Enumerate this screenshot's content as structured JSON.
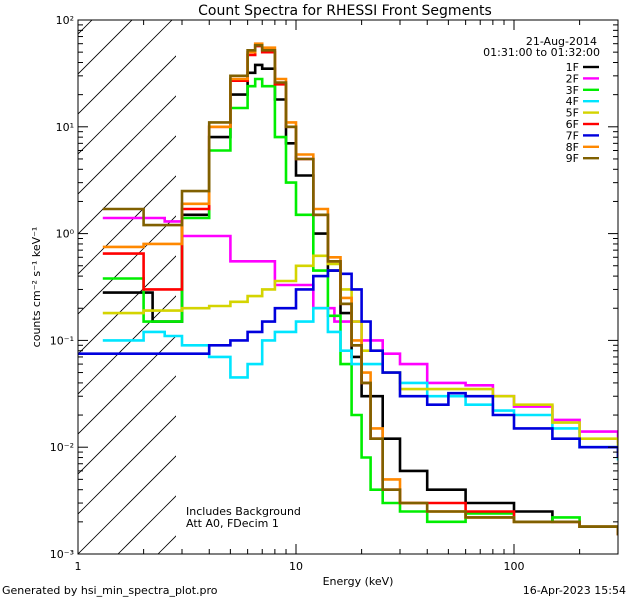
{
  "footer": {
    "left": "Generated by hsi_min_spectra_plot.pro",
    "right": "16-Apr-2023 15:54"
  },
  "chart_data": {
    "type": "line",
    "title": "Count Spectra for RHESSI Front Segments",
    "xlabel": "Energy (keV)",
    "ylabel": "counts cm⁻² s⁻¹ keV⁻¹",
    "xscale": "log",
    "yscale": "log",
    "xlim": [
      1,
      300
    ],
    "ylim": [
      0.001,
      100
    ],
    "x_ticks": [
      {
        "value": 1,
        "label": "1"
      },
      {
        "value": 10,
        "label": "10"
      },
      {
        "value": 100,
        "label": "100"
      }
    ],
    "y_ticks": [
      {
        "value": 0.001,
        "label": "10⁻³"
      },
      {
        "value": 0.01,
        "label": "10⁻²"
      },
      {
        "value": 0.1,
        "label": "10⁻¹"
      },
      {
        "value": 1,
        "label": "10⁰"
      },
      {
        "value": 10,
        "label": "10¹"
      },
      {
        "value": 100,
        "label": "10²"
      }
    ],
    "hatched_region_x": [
      1,
      3
    ],
    "annotations": {
      "date": "21-Aug-2014",
      "time_range": "01:31:00 to 01:32:00",
      "notes": [
        "Includes Background",
        "Att A0, FDecim 1"
      ]
    },
    "legend_position": "top-right",
    "series": [
      {
        "name": "1F",
        "color": "#000000",
        "x": [
          1.3,
          2.2,
          2.6,
          3.0,
          4.0,
          5.0,
          6.0,
          6.5,
          7.0,
          8.0,
          9.0,
          10.0,
          12.0,
          14.0,
          16.0,
          18.0,
          20.0,
          25.0,
          30.0,
          40.0,
          60.0,
          100.0,
          150.0,
          200.0,
          300.0
        ],
        "y": [
          0.28,
          0.15,
          0.15,
          1.5,
          8,
          20,
          32,
          38,
          35,
          18,
          7,
          3.5,
          1.0,
          0.45,
          0.18,
          0.07,
          0.03,
          0.012,
          0.006,
          0.004,
          0.003,
          0.0025,
          0.002,
          0.0018,
          0.0015
        ]
      },
      {
        "name": "2F",
        "color": "#ff00ff",
        "x": [
          1.3,
          2.0,
          2.5,
          3.0,
          5.0,
          8.0,
          12.0,
          15.0,
          20.0,
          25.0,
          30.0,
          40.0,
          60.0,
          80.0,
          100.0,
          150.0,
          200.0,
          300.0
        ],
        "y": [
          1.4,
          1.4,
          1.3,
          0.95,
          0.55,
          0.33,
          0.2,
          0.15,
          0.1,
          0.075,
          0.06,
          0.04,
          0.038,
          0.03,
          0.024,
          0.018,
          0.014,
          0.011
        ]
      },
      {
        "name": "3F",
        "color": "#00ee00",
        "x": [
          1.3,
          2.0,
          2.5,
          3.0,
          4.0,
          5.0,
          6.0,
          6.5,
          7.0,
          8.0,
          9.0,
          10.0,
          12.0,
          14.0,
          16.0,
          18.0,
          20.0,
          22.0,
          25.0,
          30.0,
          40.0,
          60.0,
          100.0,
          150.0,
          200.0,
          300.0
        ],
        "y": [
          0.38,
          0.15,
          0.15,
          1.4,
          6,
          15,
          24,
          28,
          24,
          8,
          3.0,
          1.5,
          0.45,
          0.17,
          0.06,
          0.02,
          0.008,
          0.004,
          0.003,
          0.0025,
          0.002,
          0.0024,
          0.002,
          0.0022,
          0.0018,
          0.0016
        ]
      },
      {
        "name": "4F",
        "color": "#00e5ff",
        "x": [
          1.3,
          2.0,
          2.5,
          3.0,
          4.0,
          5.0,
          6.0,
          7.0,
          8.0,
          10.0,
          12.0,
          14.0,
          16.0,
          18.0,
          20.0,
          25.0,
          30.0,
          40.0,
          60.0,
          80.0,
          100.0,
          150.0,
          200.0,
          300.0
        ],
        "y": [
          0.1,
          0.12,
          0.11,
          0.09,
          0.07,
          0.045,
          0.06,
          0.1,
          0.12,
          0.15,
          0.2,
          0.12,
          0.08,
          0.06,
          0.06,
          0.05,
          0.04,
          0.03,
          0.025,
          0.022,
          0.02,
          0.015,
          0.01,
          0.0075
        ]
      },
      {
        "name": "5F",
        "color": "#d4d400",
        "x": [
          1.3,
          2.0,
          3.0,
          4.0,
          5.0,
          6.0,
          7.0,
          8.0,
          10.0,
          12.0,
          14.0,
          16.0,
          18.0,
          20.0,
          25.0,
          30.0,
          40.0,
          60.0,
          80.0,
          100.0,
          150.0,
          200.0,
          300.0
        ],
        "y": [
          0.18,
          0.19,
          0.2,
          0.21,
          0.23,
          0.26,
          0.3,
          0.36,
          0.5,
          0.62,
          0.52,
          0.3,
          0.15,
          0.08,
          0.05,
          0.035,
          0.035,
          0.035,
          0.03,
          0.025,
          0.017,
          0.012,
          0.008
        ]
      },
      {
        "name": "6F",
        "color": "#ff0000",
        "x": [
          1.3,
          2.0,
          2.5,
          3.0,
          4.0,
          5.0,
          6.0,
          6.5,
          7.0,
          8.0,
          9.0,
          10.0,
          12.0,
          14.0,
          16.0,
          18.0,
          20.0,
          22.0,
          25.0,
          30.0,
          40.0,
          60.0,
          100.0,
          150.0,
          200.0,
          300.0
        ],
        "y": [
          0.65,
          0.3,
          0.3,
          1.7,
          10,
          27,
          47,
          57,
          50,
          25,
          10,
          5,
          1.5,
          0.55,
          0.22,
          0.09,
          0.04,
          0.012,
          0.004,
          0.003,
          0.003,
          0.0025,
          0.002,
          0.002,
          0.0018,
          0.0015
        ]
      },
      {
        "name": "7F",
        "color": "#0000dd",
        "x": [
          1.0,
          2.0,
          3.0,
          4.0,
          5.0,
          6.0,
          7.0,
          8.0,
          10.0,
          12.0,
          14.0,
          16.0,
          18.0,
          20.0,
          22.0,
          25.0,
          30.0,
          40.0,
          50.0,
          60.0,
          80.0,
          100.0,
          150.0,
          200.0,
          300.0
        ],
        "y": [
          0.075,
          0.075,
          0.075,
          0.09,
          0.1,
          0.12,
          0.15,
          0.2,
          0.3,
          0.4,
          0.45,
          0.42,
          0.3,
          0.15,
          0.08,
          0.05,
          0.03,
          0.025,
          0.032,
          0.03,
          0.02,
          0.015,
          0.012,
          0.01,
          0.008
        ]
      },
      {
        "name": "8F",
        "color": "#ff8800",
        "x": [
          1.3,
          2.0,
          2.5,
          3.0,
          4.0,
          5.0,
          6.0,
          6.5,
          7.0,
          8.0,
          9.0,
          10.0,
          12.0,
          14.0,
          16.0,
          18.0,
          20.0,
          22.0,
          25.0,
          30.0,
          40.0,
          60.0,
          100.0,
          150.0,
          200.0,
          300.0
        ],
        "y": [
          0.75,
          0.8,
          0.8,
          1.9,
          10,
          28,
          50,
          60,
          55,
          28,
          11,
          5.5,
          1.7,
          0.6,
          0.25,
          0.1,
          0.05,
          0.015,
          0.005,
          0.003,
          0.0025,
          0.0022,
          0.002,
          0.002,
          0.0018,
          0.0015
        ]
      },
      {
        "name": "9F",
        "color": "#806000",
        "x": [
          1.3,
          2.0,
          2.5,
          3.0,
          4.0,
          5.0,
          6.0,
          6.5,
          7.0,
          8.0,
          9.0,
          10.0,
          12.0,
          14.0,
          16.0,
          18.0,
          20.0,
          22.0,
          25.0,
          30.0,
          40.0,
          60.0,
          100.0,
          150.0,
          200.0,
          300.0
        ],
        "y": [
          1.7,
          1.2,
          1.2,
          2.5,
          11,
          30,
          52,
          58,
          52,
          26,
          10,
          5,
          1.5,
          0.55,
          0.22,
          0.09,
          0.04,
          0.012,
          0.004,
          0.003,
          0.0025,
          0.0022,
          0.002,
          0.002,
          0.0018,
          0.0015
        ]
      }
    ]
  }
}
